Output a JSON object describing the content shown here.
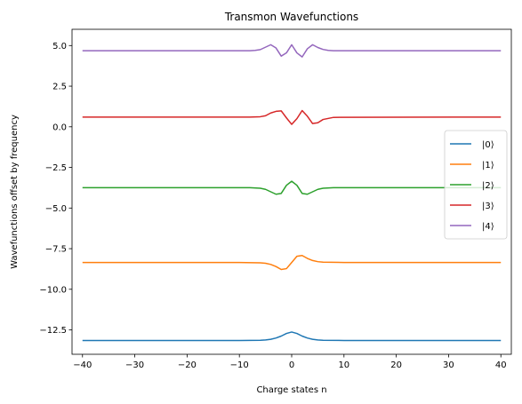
{
  "chart_data": {
    "type": "line",
    "title": "Transmon Wavefunctions",
    "xlabel": "Charge states n",
    "ylabel": "Wavefunctions offset by frequency",
    "xlim": [
      -42,
      42
    ],
    "ylim": [
      -14.0,
      6.0
    ],
    "xticks": [
      -40,
      -30,
      -20,
      -10,
      0,
      10,
      20,
      30,
      40
    ],
    "xtick_labels": [
      "−40",
      "−30",
      "−20",
      "−10",
      "0",
      "10",
      "20",
      "30",
      "40"
    ],
    "yticks": [
      -12.5,
      -10.0,
      -7.5,
      -5.0,
      -2.5,
      0.0,
      2.5,
      5.0
    ],
    "ytick_labels": [
      "−12.5",
      "−10.0",
      "−7.5",
      "−5.0",
      "−2.5",
      "0.0",
      "2.5",
      "5.0"
    ],
    "grid": false,
    "legend_position": "center-right",
    "series": [
      {
        "name": "|0⟩",
        "color": "#1f77b4",
        "x": [
          -40,
          -10,
          -6,
          -5,
          -4,
          -3,
          -2,
          -1,
          0,
          1,
          2,
          3,
          4,
          5,
          6,
          10,
          40
        ],
        "y": [
          -13.15,
          -13.15,
          -13.14,
          -13.12,
          -13.08,
          -13.0,
          -12.88,
          -12.72,
          -12.63,
          -12.72,
          -12.88,
          -13.0,
          -13.08,
          -13.12,
          -13.14,
          -13.15,
          -13.15
        ]
      },
      {
        "name": "|1⟩",
        "color": "#ff7f0e",
        "x": [
          -40,
          -10,
          -6,
          -5,
          -4,
          -3,
          -2,
          -1,
          0,
          1,
          2,
          3,
          4,
          5,
          6,
          10,
          40
        ],
        "y": [
          -8.35,
          -8.35,
          -8.37,
          -8.4,
          -8.47,
          -8.6,
          -8.78,
          -8.73,
          -8.35,
          -7.97,
          -7.92,
          -8.1,
          -8.23,
          -8.3,
          -8.33,
          -8.35,
          -8.35
        ]
      },
      {
        "name": "|2⟩",
        "color": "#2ca02c",
        "x": [
          -40,
          -8,
          -6,
          -5,
          -4,
          -3,
          -2,
          -1,
          0,
          1,
          2,
          3,
          4,
          5,
          6,
          8,
          40
        ],
        "y": [
          -3.75,
          -3.75,
          -3.78,
          -3.85,
          -4.0,
          -4.15,
          -4.1,
          -3.6,
          -3.35,
          -3.6,
          -4.1,
          -4.15,
          -4.0,
          -3.85,
          -3.78,
          -3.75,
          -3.75
        ]
      },
      {
        "name": "|3⟩",
        "color": "#d62728",
        "x": [
          -40,
          -8,
          -6,
          -5,
          -4,
          -3,
          -2,
          -1,
          0,
          1,
          2,
          3,
          4,
          5,
          6,
          8,
          40
        ],
        "y": [
          0.6,
          0.6,
          0.62,
          0.68,
          0.85,
          0.95,
          0.98,
          0.55,
          0.15,
          0.5,
          1.0,
          0.65,
          0.2,
          0.25,
          0.45,
          0.58,
          0.6
        ]
      },
      {
        "name": "|4⟩",
        "color": "#9467bd",
        "x": [
          -40,
          -8,
          -7,
          -6,
          -5,
          -4,
          -3,
          -2,
          -1,
          0,
          1,
          2,
          3,
          4,
          5,
          6,
          7,
          8,
          40
        ],
        "y": [
          4.68,
          4.68,
          4.7,
          4.75,
          4.9,
          5.05,
          4.85,
          4.35,
          4.55,
          5.05,
          4.55,
          4.3,
          4.8,
          5.05,
          4.88,
          4.76,
          4.7,
          4.68,
          4.68
        ]
      }
    ]
  }
}
